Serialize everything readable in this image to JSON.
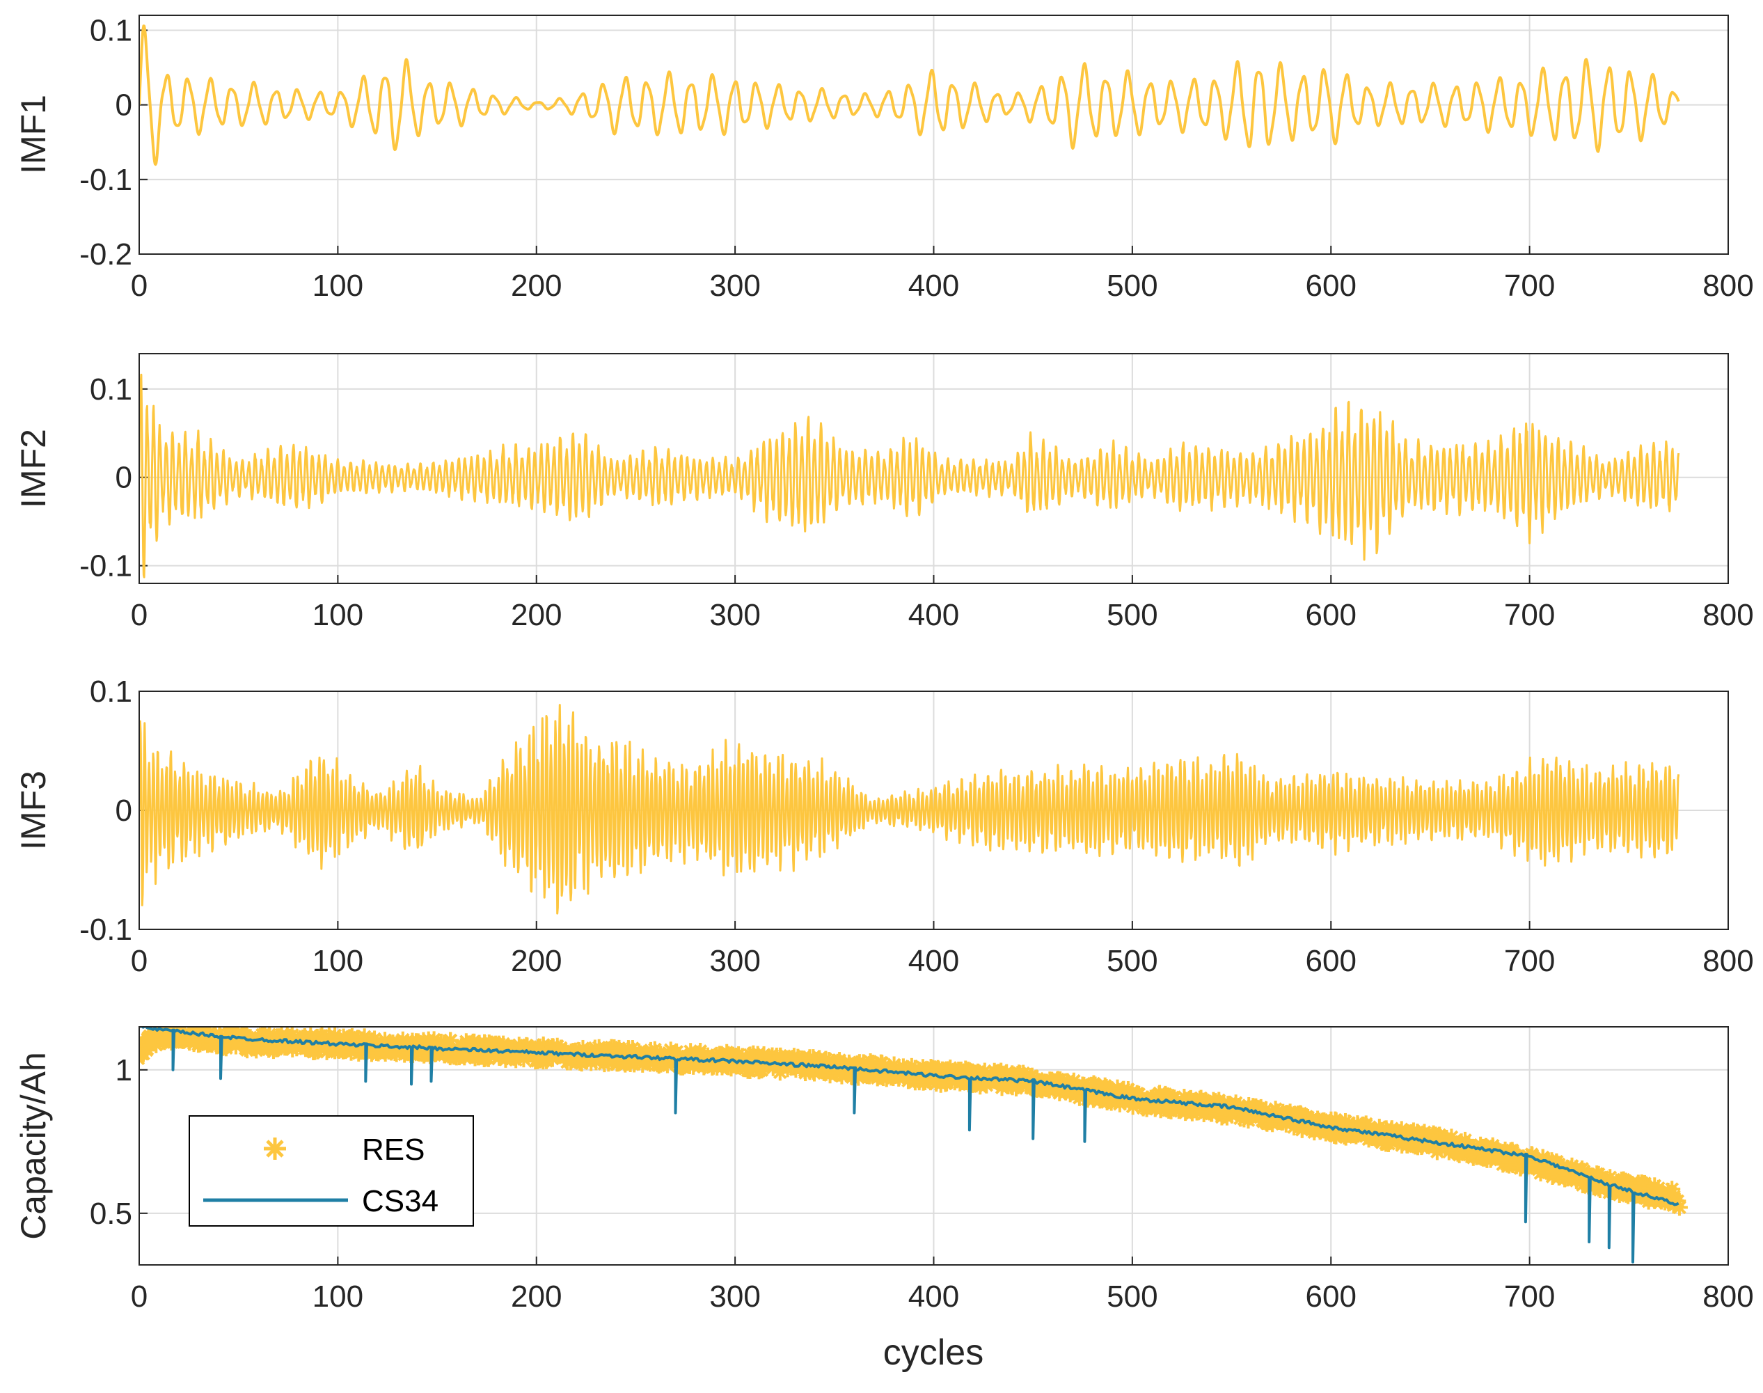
{
  "colors": {
    "imf": "#FDC63F",
    "res": "#FDC63F",
    "cs34": "#1F7FA5",
    "grid": "#dcdcdc",
    "axis": "#262626"
  },
  "chart_data": [
    {
      "type": "line",
      "ylabel": "IMF1",
      "xlabel": "",
      "xlim": [
        0,
        800
      ],
      "ylim": [
        -0.2,
        0.12
      ],
      "xticks": [
        "0",
        "100",
        "200",
        "300",
        "400",
        "500",
        "600",
        "700",
        "800"
      ],
      "yticks": [
        "0.1",
        "0",
        "-0.1",
        "-0.2"
      ],
      "ytick_values": [
        0.1,
        0,
        -0.1,
        -0.2
      ],
      "series": [
        {
          "name": "IMF1",
          "color": "#FDC63F",
          "carrier_period_cycles": 11,
          "envelope": [
            [
              0,
              0.12
            ],
            [
              6,
              0.1
            ],
            [
              12,
              0.05
            ],
            [
              40,
              0.035
            ],
            [
              60,
              0.03
            ],
            [
              85,
              0.02
            ],
            [
              100,
              0.02
            ],
            [
              120,
              0.05
            ],
            [
              130,
              0.075
            ],
            [
              140,
              0.045
            ],
            [
              160,
              0.03
            ],
            [
              180,
              0.015
            ],
            [
              200,
              0.005
            ],
            [
              215,
              0.01
            ],
            [
              240,
              0.04
            ],
            [
              270,
              0.045
            ],
            [
              300,
              0.04
            ],
            [
              320,
              0.03
            ],
            [
              350,
              0.02
            ],
            [
              370,
              0.015
            ],
            [
              385,
              0.03
            ],
            [
              400,
              0.05
            ],
            [
              420,
              0.03
            ],
            [
              440,
              0.015
            ],
            [
              455,
              0.03
            ],
            [
              470,
              0.06
            ],
            [
              490,
              0.05
            ],
            [
              520,
              0.035
            ],
            [
              545,
              0.045
            ],
            [
              562,
              0.075
            ],
            [
              580,
              0.05
            ],
            [
              600,
              0.055
            ],
            [
              620,
              0.03
            ],
            [
              660,
              0.03
            ],
            [
              700,
              0.045
            ],
            [
              730,
              0.065
            ],
            [
              745,
              0.06
            ],
            [
              765,
              0.04
            ],
            [
              775,
              0.02
            ]
          ]
        }
      ]
    },
    {
      "type": "line",
      "ylabel": "IMF2",
      "xlabel": "",
      "xlim": [
        0,
        800
      ],
      "ylim": [
        -0.12,
        0.14
      ],
      "xticks": [
        "0",
        "100",
        "200",
        "300",
        "400",
        "500",
        "600",
        "700",
        "800"
      ],
      "yticks": [
        "0.1",
        "0",
        "-0.1"
      ],
      "ytick_values": [
        0.1,
        0,
        -0.1
      ],
      "series": [
        {
          "name": "IMF2",
          "color": "#FDC63F",
          "carrier_period_cycles": 3.2,
          "envelope": [
            [
              0,
              0.13
            ],
            [
              5,
              0.1
            ],
            [
              12,
              0.055
            ],
            [
              30,
              0.05
            ],
            [
              50,
              0.02
            ],
            [
              80,
              0.04
            ],
            [
              100,
              0.02
            ],
            [
              140,
              0.015
            ],
            [
              175,
              0.03
            ],
            [
              200,
              0.04
            ],
            [
              222,
              0.055
            ],
            [
              240,
              0.02
            ],
            [
              260,
              0.035
            ],
            [
              280,
              0.025
            ],
            [
              300,
              0.02
            ],
            [
              320,
              0.055
            ],
            [
              338,
              0.07
            ],
            [
              355,
              0.035
            ],
            [
              375,
              0.03
            ],
            [
              390,
              0.05
            ],
            [
              405,
              0.02
            ],
            [
              440,
              0.02
            ],
            [
              448,
              0.05
            ],
            [
              458,
              0.04
            ],
            [
              470,
              0.02
            ],
            [
              490,
              0.04
            ],
            [
              510,
              0.02
            ],
            [
              525,
              0.04
            ],
            [
              560,
              0.03
            ],
            [
              590,
              0.055
            ],
            [
              610,
              0.085
            ],
            [
              622,
              0.09
            ],
            [
              640,
              0.04
            ],
            [
              680,
              0.04
            ],
            [
              700,
              0.07
            ],
            [
              720,
              0.04
            ],
            [
              740,
              0.02
            ],
            [
              760,
              0.04
            ],
            [
              775,
              0.04
            ]
          ]
        }
      ]
    },
    {
      "type": "line",
      "ylabel": "IMF3",
      "xlabel": "",
      "xlim": [
        0,
        800
      ],
      "ylim": [
        -0.1,
        0.1
      ],
      "xticks": [
        "0",
        "100",
        "200",
        "300",
        "400",
        "500",
        "600",
        "700",
        "800"
      ],
      "yticks": [
        "0.1",
        "0",
        "-0.1"
      ],
      "ytick_values": [
        0.1,
        0,
        -0.1
      ],
      "series": [
        {
          "name": "IMF3",
          "color": "#FDC63F",
          "carrier_period_cycles": 2.2,
          "envelope": [
            [
              0,
              0.09
            ],
            [
              5,
              0.06
            ],
            [
              20,
              0.045
            ],
            [
              40,
              0.03
            ],
            [
              70,
              0.015
            ],
            [
              90,
              0.05
            ],
            [
              100,
              0.04
            ],
            [
              120,
              0.015
            ],
            [
              140,
              0.04
            ],
            [
              150,
              0.02
            ],
            [
              170,
              0.01
            ],
            [
              190,
              0.06
            ],
            [
              205,
              0.085
            ],
            [
              215,
              0.09
            ],
            [
              230,
              0.06
            ],
            [
              245,
              0.065
            ],
            [
              260,
              0.045
            ],
            [
              280,
              0.04
            ],
            [
              300,
              0.06
            ],
            [
              320,
              0.05
            ],
            [
              345,
              0.04
            ],
            [
              370,
              0.01
            ],
            [
              400,
              0.02
            ],
            [
              430,
              0.035
            ],
            [
              460,
              0.035
            ],
            [
              480,
              0.04
            ],
            [
              500,
              0.035
            ],
            [
              520,
              0.045
            ],
            [
              540,
              0.04
            ],
            [
              555,
              0.05
            ],
            [
              570,
              0.025
            ],
            [
              600,
              0.035
            ],
            [
              620,
              0.03
            ],
            [
              650,
              0.025
            ],
            [
              680,
              0.025
            ],
            [
              710,
              0.05
            ],
            [
              730,
              0.035
            ],
            [
              760,
              0.04
            ],
            [
              775,
              0.04
            ]
          ]
        }
      ]
    },
    {
      "type": "line",
      "ylabel": "Capacity/Ah",
      "xlabel": "cycles",
      "xlim": [
        0,
        800
      ],
      "ylim": [
        0.32,
        1.15
      ],
      "xticks": [
        "0",
        "100",
        "200",
        "300",
        "400",
        "500",
        "600",
        "700",
        "800"
      ],
      "yticks": [
        "1",
        "0.5"
      ],
      "ytick_values": [
        1,
        0.5
      ],
      "legend": {
        "location": "bottom-left",
        "entries": [
          "RES",
          "CS34"
        ]
      },
      "series": [
        {
          "name": "RES",
          "color": "#FDC63F",
          "marker": "asterisk",
          "trend": [
            [
              0,
              1.06
            ],
            [
              10,
              1.13
            ],
            [
              50,
              1.1
            ],
            [
              100,
              1.09
            ],
            [
              200,
              1.06
            ],
            [
              300,
              1.03
            ],
            [
              350,
              1.01
            ],
            [
              400,
              0.98
            ],
            [
              450,
              0.96
            ],
            [
              500,
              0.9
            ],
            [
              550,
              0.86
            ],
            [
              600,
              0.8
            ],
            [
              650,
              0.75
            ],
            [
              700,
              0.68
            ],
            [
              740,
              0.6
            ],
            [
              775,
              0.55
            ]
          ]
        },
        {
          "name": "CS34",
          "color": "#1F7FA5",
          "trend": [
            [
              0,
              1.15
            ],
            [
              10,
              1.14
            ],
            [
              50,
              1.11
            ],
            [
              100,
              1.09
            ],
            [
              200,
              1.06
            ],
            [
              300,
              1.03
            ],
            [
              350,
              1.01
            ],
            [
              400,
              0.98
            ],
            [
              450,
              0.96
            ],
            [
              500,
              0.9
            ],
            [
              550,
              0.87
            ],
            [
              600,
              0.8
            ],
            [
              650,
              0.75
            ],
            [
              700,
              0.7
            ],
            [
              740,
              0.6
            ],
            [
              775,
              0.53
            ]
          ],
          "dips": [
            [
              17,
              1.0
            ],
            [
              41,
              0.97
            ],
            [
              114,
              0.96
            ],
            [
              137,
              0.95
            ],
            [
              147,
              0.96
            ],
            [
              270,
              0.85
            ],
            [
              360,
              0.85
            ],
            [
              418,
              0.79
            ],
            [
              450,
              0.76
            ],
            [
              476,
              0.75
            ],
            [
              698,
              0.47
            ],
            [
              730,
              0.4
            ],
            [
              740,
              0.38
            ],
            [
              752,
              0.33
            ]
          ]
        }
      ]
    }
  ]
}
